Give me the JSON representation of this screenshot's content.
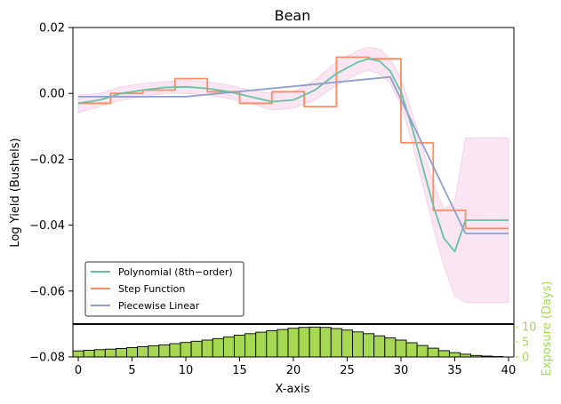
{
  "chart_data": {
    "type": "line",
    "title": "Bean",
    "xlabel": "X-axis",
    "ylabel": "Log Yield (Bushels)",
    "y2label": "Exposure (Days)",
    "xlim": [
      -0.5,
      40.5
    ],
    "ylim": [
      -0.08,
      0.02
    ],
    "xticks": [
      "0",
      "5",
      "10",
      "15",
      "20",
      "25",
      "30",
      "35",
      "40"
    ],
    "yticks": [
      "0.02",
      "0.00",
      "−0.02",
      "−0.04",
      "−0.06",
      "−0.08"
    ],
    "y2ticks": [
      "0",
      "5",
      "10"
    ],
    "legend_position": "lower-left",
    "grid": false,
    "colors": {
      "polynomial": "#66c2a5",
      "step": "#fc8d62",
      "piecewise": "#8da0cb",
      "band": "#f4c7e3",
      "histogram": "#a6d854",
      "exposure_label": "#a6d854"
    },
    "series": [
      {
        "name": "Polynomial (8th−order)",
        "x": [
          0,
          2,
          4,
          6,
          8,
          10,
          12,
          14,
          16,
          18,
          20,
          22,
          24,
          26,
          27,
          28,
          29,
          30,
          31,
          32,
          33,
          34,
          35,
          36,
          37,
          38,
          40
        ],
        "y": [
          -0.003,
          -0.002,
          0.0,
          0.001,
          0.0018,
          0.002,
          0.0015,
          0.0005,
          -0.001,
          -0.0025,
          -0.002,
          0.001,
          0.006,
          0.0095,
          0.0105,
          0.0098,
          0.0068,
          0.0005,
          -0.01,
          -0.022,
          -0.034,
          -0.044,
          -0.048,
          -0.0385,
          -0.0385,
          -0.0385,
          -0.0385
        ]
      },
      {
        "name": "Step Function",
        "x": [
          0,
          3,
          3,
          6,
          6,
          9,
          9,
          12,
          12,
          15,
          15,
          18,
          18,
          21,
          21,
          24,
          24,
          27,
          27,
          30,
          30,
          33,
          33,
          36,
          36,
          40
        ],
        "y": [
          -0.003,
          -0.003,
          0.0,
          0.0,
          0.001,
          0.001,
          0.0045,
          0.0045,
          0.0005,
          0.0005,
          -0.003,
          -0.003,
          0.0005,
          0.0005,
          -0.004,
          -0.004,
          0.011,
          0.011,
          0.0105,
          0.0105,
          -0.015,
          -0.015,
          -0.0355,
          -0.0355,
          -0.041,
          -0.041
        ]
      },
      {
        "name": "Piecewise Linear",
        "x": [
          0,
          10,
          29,
          36,
          40
        ],
        "y": [
          -0.001,
          -0.001,
          0.005,
          -0.0425,
          -0.0425
        ]
      }
    ],
    "confidence_band": {
      "x": [
        0,
        2,
        4,
        6,
        8,
        10,
        12,
        14,
        16,
        18,
        20,
        22,
        24,
        26,
        27,
        28,
        29,
        30,
        31,
        32,
        33,
        34,
        35,
        36,
        37,
        38,
        40
      ],
      "upper": [
        -0.0005,
        0.0,
        0.002,
        0.003,
        0.0035,
        0.004,
        0.0035,
        0.0025,
        0.001,
        0.0,
        0.0005,
        0.004,
        0.0095,
        0.013,
        0.014,
        0.0135,
        0.0105,
        0.0045,
        -0.0055,
        -0.0165,
        -0.0275,
        -0.035,
        -0.033,
        -0.0135,
        -0.0135,
        -0.0135,
        -0.0135
      ],
      "lower": [
        -0.0058,
        -0.004,
        -0.002,
        -0.001,
        0.0,
        0.0,
        -0.0005,
        -0.0015,
        -0.003,
        -0.005,
        -0.0045,
        -0.002,
        0.0025,
        0.006,
        0.007,
        0.006,
        0.003,
        -0.0035,
        -0.0145,
        -0.0275,
        -0.0405,
        -0.0525,
        -0.0615,
        -0.0635,
        -0.0635,
        -0.0635,
        -0.0635
      ]
    },
    "histogram": {
      "x": [
        0,
        1,
        2,
        3,
        4,
        5,
        6,
        7,
        8,
        9,
        10,
        11,
        12,
        13,
        14,
        15,
        16,
        17,
        18,
        19,
        20,
        21,
        22,
        23,
        24,
        25,
        26,
        27,
        28,
        29,
        30,
        31,
        32,
        33,
        34,
        35,
        36,
        37,
        38,
        39
      ],
      "values": [
        2,
        2.2,
        2.4,
        2.6,
        2.8,
        3.1,
        3.4,
        3.7,
        4,
        4.4,
        4.8,
        5.2,
        5.6,
        6.1,
        6.6,
        7.2,
        7.7,
        8.2,
        8.7,
        9.1,
        9.5,
        9.8,
        9.9,
        9.8,
        9.4,
        8.9,
        8.3,
        7.7,
        7,
        6.3,
        5.6,
        4.7,
        3.8,
        2.9,
        2.1,
        1.4,
        0.9,
        0.5,
        0.3,
        0.15
      ],
      "ylim": [
        0,
        10
      ]
    }
  }
}
